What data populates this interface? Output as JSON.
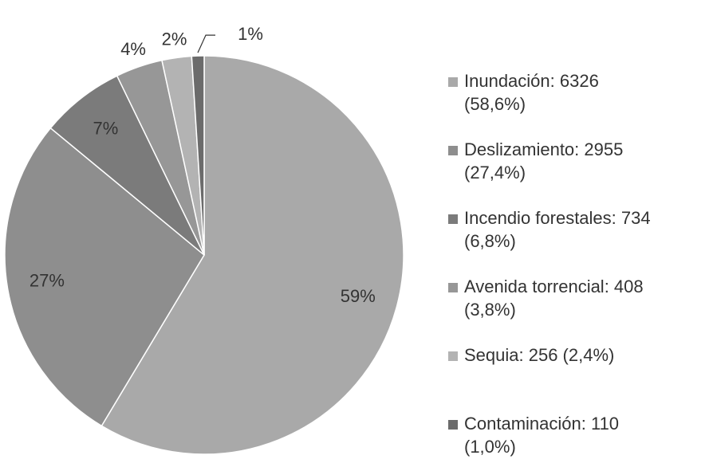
{
  "chart_data": {
    "type": "pie",
    "categories": [
      "Inundación",
      "Deslizamiento",
      "Incendio forestales",
      "Avenida torrencial",
      "Sequia",
      "Contaminación"
    ],
    "values": [
      58.6,
      27.4,
      6.8,
      3.8,
      2.4,
      1.0
    ],
    "value_labels": [
      "59%",
      "27%",
      "7%",
      "4%",
      "2%",
      "1%"
    ],
    "colors": [
      "#a9a9a9",
      "#8e8e8e",
      "#7b7b7b",
      "#979797",
      "#b3b3b3",
      "#6b6b6b"
    ],
    "legend": [
      [
        "Inundación: 6326",
        "(58,6%)"
      ],
      [
        "Deslizamiento: 2955",
        "(27,4%)"
      ],
      [
        "Incendio forestales: 734",
        "(6,8%)"
      ],
      [
        "Avenida torrencial: 408",
        "(3,8%)"
      ],
      [
        "Sequia: 256 (2,4%)"
      ],
      [
        "Contaminación: 110",
        "(1,0%)"
      ]
    ],
    "legend_position": "right"
  }
}
